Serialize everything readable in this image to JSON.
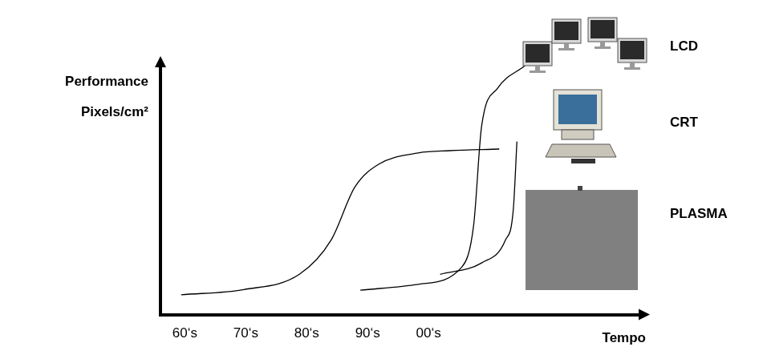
{
  "chart_data": {
    "type": "line",
    "y_label": [
      "Performance",
      "Pixels/cm²"
    ],
    "x_label": "Tempo",
    "xlim": [
      1956,
      2035
    ],
    "xticks": [
      {
        "value": 1960,
        "label": "60‘s"
      },
      {
        "value": 1970,
        "label": "70‘s"
      },
      {
        "value": 1980,
        "label": "80‘s"
      },
      {
        "value": 1990,
        "label": "90‘s"
      },
      {
        "value": 2000,
        "label": "00‘s"
      }
    ],
    "ylim": [
      0,
      110
    ],
    "yticks": [],
    "tick_labels": "x",
    "grid": false,
    "marker": "none",
    "series": [
      {
        "name": "LCD",
        "color": "#000000",
        "x": [
          1988.8,
          1998.3,
          2005.5,
          2007.4,
          2008.7,
          2011.3,
          2015.8
        ],
        "values": [
          10.7,
          13.3,
          21,
          39.3,
          82.7,
          99.3,
          109.3
        ]
      },
      {
        "name": "CRT",
        "color": "#000000",
        "x": [
          1959.4,
          1969.7,
          1978.8,
          1984,
          1987.9,
          1991.8,
          1998.3,
          2003.5,
          2011.6
        ],
        "values": [
          8.7,
          11,
          17.7,
          32.7,
          56,
          66,
          71,
          72,
          72.7
        ]
      },
      {
        "name": "PLASMA",
        "color": "#000000",
        "x": [
          2001.9,
          2008.7,
          2012.6,
          2013.9,
          2014.5
        ],
        "values": [
          17.7,
          22.7,
          32.7,
          46,
          76
        ]
      }
    ]
  }
}
